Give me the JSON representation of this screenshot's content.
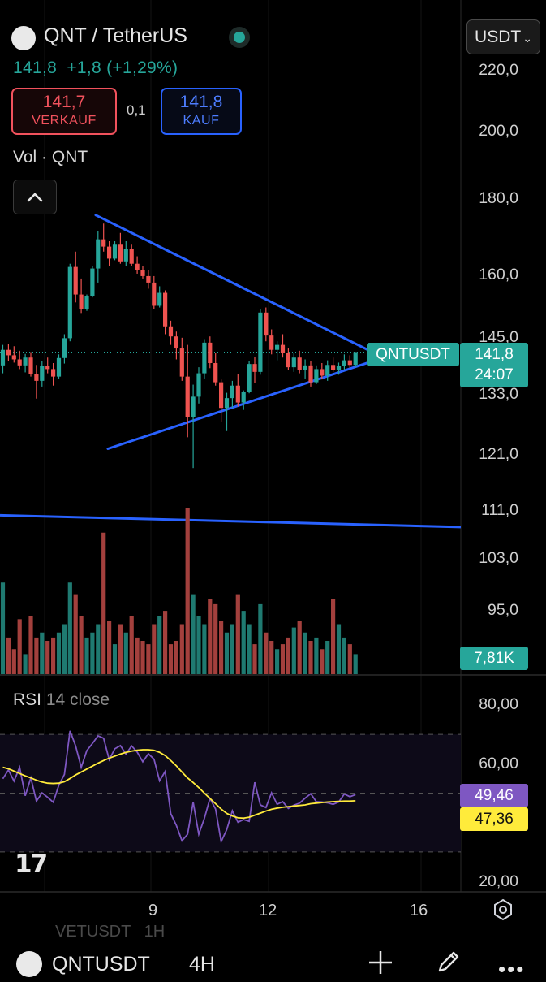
{
  "header": {
    "pair_title": "QNT / TetherUS",
    "last_line": "141,8  +1,8 (+1,29%)",
    "sell_price": "141,7",
    "sell_label": "VERKAUF",
    "spread": "0,1",
    "buy_price": "141,8",
    "buy_label": "KAUF",
    "currency": "USDT",
    "collapse_icon": "chevron-up-icon",
    "logo_icon": "quant-logo-icon"
  },
  "volume_label": {
    "main": "Vol · QNT"
  },
  "price_axis": [
    "220,0",
    "200,0",
    "180,0",
    "160,0",
    "145,0",
    "133,0",
    "121,0",
    "111,0",
    "103,0",
    "95,0"
  ],
  "tags": {
    "symbol": "QNTUSDT",
    "price": "141,8",
    "countdown": "24:07",
    "volume": "7,81K",
    "rsi_value": "49,46",
    "rsi_ma": "47,36"
  },
  "rsi_panel": {
    "label": "RSI",
    "params": "14 close",
    "axis": [
      "80,00",
      "60,00",
      "20,00"
    ]
  },
  "time_axis": [
    "9",
    "12",
    "16"
  ],
  "footer": {
    "ghost_text": "VETUSDT   1H",
    "symbol": "QNTUSDT",
    "timeframe": "4H",
    "icons": [
      "plus-icon",
      "pen-icon",
      "more-icon",
      "settings-icon"
    ]
  },
  "colors": {
    "up": "#26a69a",
    "down": "#ef5350",
    "trendline": "#2962ff",
    "rsi": "#7e57c2",
    "rsi_ma": "#ffeb3b"
  },
  "chart_data": {
    "type": "candlestick",
    "title": "QNT / TetherUS",
    "timeframe": "4H",
    "x_ticks": [
      "9",
      "12",
      "16"
    ],
    "y_axis_ticks": [
      220.0,
      200.0,
      180.0,
      160.0,
      145.0,
      133.0,
      121.0,
      111.0,
      103.0,
      95.0
    ],
    "y_scale": "log",
    "last_price": 141.8,
    "candles": [
      [
        138.9,
        143.4,
        137.2,
        142.3
      ],
      [
        142.3,
        143.6,
        139.8,
        141.1
      ],
      [
        141.1,
        143.1,
        139.5,
        140.2
      ],
      [
        140.2,
        142.1,
        138.1,
        138.9
      ],
      [
        138.9,
        141.4,
        137.4,
        140.6
      ],
      [
        140.6,
        141.8,
        136.5,
        137.1
      ],
      [
        137.1,
        139.0,
        131.9,
        135.6
      ],
      [
        135.6,
        139.8,
        134.4,
        138.7
      ],
      [
        138.7,
        140.6,
        137.2,
        138.1
      ],
      [
        138.1,
        139.4,
        134.6,
        136.5
      ],
      [
        136.5,
        141.3,
        136.1,
        140.5
      ],
      [
        140.5,
        145.8,
        139.3,
        144.9
      ],
      [
        144.9,
        162.7,
        144.2,
        161.9
      ],
      [
        161.9,
        165.8,
        153.2,
        155.1
      ],
      [
        155.1,
        159.0,
        150.7,
        151.6
      ],
      [
        151.6,
        155.1,
        151.2,
        154.7
      ],
      [
        154.7,
        162.1,
        154.4,
        161.5
      ],
      [
        161.5,
        171.2,
        158.0,
        169.0
      ],
      [
        169.0,
        173.2,
        165.8,
        167.1
      ],
      [
        167.1,
        168.5,
        162.1,
        164.0
      ],
      [
        164.0,
        168.5,
        163.6,
        167.6
      ],
      [
        167.6,
        170.7,
        162.7,
        163.3
      ],
      [
        163.3,
        168.5,
        162.1,
        166.5
      ],
      [
        166.5,
        167.6,
        162.1,
        162.7
      ],
      [
        162.7,
        164.6,
        160.2,
        161.1
      ],
      [
        161.1,
        162.1,
        159.0,
        159.6
      ],
      [
        159.6,
        161.1,
        156.5,
        158.0
      ],
      [
        158.0,
        159.6,
        151.6,
        152.4
      ],
      [
        152.4,
        157.1,
        152.0,
        155.5
      ],
      [
        155.5,
        156.1,
        145.8,
        147.6
      ],
      [
        147.6,
        148.9,
        143.4,
        145.3
      ],
      [
        145.3,
        146.4,
        140.2,
        142.6
      ],
      [
        142.6,
        145.0,
        135.6,
        136.5
      ],
      [
        136.5,
        143.4,
        124.2,
        128.2
      ],
      [
        128.2,
        134.8,
        118.4,
        132.3
      ],
      [
        132.3,
        138.5,
        130.9,
        137.2
      ],
      [
        137.2,
        144.7,
        136.1,
        143.9
      ],
      [
        143.9,
        145.3,
        138.3,
        139.4
      ],
      [
        139.4,
        141.6,
        134.6,
        135.3
      ],
      [
        135.3,
        135.9,
        127.2,
        130.0
      ],
      [
        130.0,
        133.1,
        125.4,
        132.0
      ],
      [
        132.0,
        135.6,
        130.0,
        134.6
      ],
      [
        134.6,
        137.1,
        130.3,
        131.1
      ],
      [
        131.1,
        133.6,
        129.6,
        133.3
      ],
      [
        133.3,
        139.8,
        133.0,
        139.2
      ],
      [
        139.2,
        140.8,
        135.2,
        137.5
      ],
      [
        137.5,
        151.6,
        136.9,
        150.8
      ],
      [
        150.8,
        152.0,
        144.2,
        145.5
      ],
      [
        145.5,
        146.9,
        141.3,
        142.3
      ],
      [
        142.3,
        144.2,
        140.0,
        143.4
      ],
      [
        143.4,
        145.8,
        140.6,
        141.6
      ],
      [
        141.6,
        142.6,
        137.9,
        138.5
      ],
      [
        138.5,
        141.6,
        137.5,
        140.6
      ],
      [
        140.6,
        142.1,
        137.2,
        137.9
      ],
      [
        137.9,
        140.2,
        136.1,
        138.9
      ],
      [
        138.9,
        139.8,
        134.4,
        135.3
      ],
      [
        135.3,
        138.9,
        134.9,
        138.1
      ],
      [
        138.1,
        139.4,
        135.9,
        136.7
      ],
      [
        136.7,
        140.0,
        135.6,
        139.0
      ],
      [
        139.0,
        140.6,
        137.5,
        137.9
      ],
      [
        137.9,
        139.5,
        136.9,
        138.7
      ],
      [
        138.7,
        141.3,
        137.9,
        140.0
      ],
      [
        140.0,
        141.1,
        138.3,
        139.0
      ],
      [
        139.0,
        141.6,
        138.5,
        141.8
      ]
    ],
    "volume_levels": [
      0.55,
      0.22,
      0.15,
      0.33,
      0.12,
      0.35,
      0.22,
      0.25,
      0.2,
      0.22,
      0.25,
      0.3,
      0.55,
      0.48,
      0.35,
      0.22,
      0.25,
      0.3,
      0.85,
      0.32,
      0.18,
      0.3,
      0.25,
      0.35,
      0.22,
      0.2,
      0.18,
      0.3,
      0.35,
      0.38,
      0.18,
      0.2,
      0.3,
      1.0,
      0.48,
      0.35,
      0.3,
      0.45,
      0.42,
      0.32,
      0.25,
      0.3,
      0.48,
      0.38,
      0.3,
      0.18,
      0.42,
      0.25,
      0.2,
      0.15,
      0.18,
      0.22,
      0.28,
      0.32,
      0.25,
      0.2,
      0.22,
      0.15,
      0.2,
      0.45,
      0.3,
      0.22,
      0.18,
      0.12
    ],
    "rsi": [
      54.9,
      57.9,
      54.1,
      58.8,
      49.1,
      55.2,
      47.3,
      50.1,
      48.6,
      46.9,
      52.7,
      56.4,
      71.2,
      66.1,
      58.8,
      64.5,
      66.9,
      69.5,
      68.7,
      61.4,
      65.1,
      66.2,
      63.3,
      66.1,
      64.0,
      60.7,
      63.4,
      61.6,
      54.2,
      57.4,
      43.0,
      39.0,
      33.8,
      36.0,
      46.9,
      36.0,
      41.4,
      48.2,
      44.6,
      33.5,
      37.6,
      44.0,
      40.1,
      41.0,
      40.4,
      53.7,
      46.0,
      45.1,
      50.1,
      46.2,
      47.1,
      44.8,
      45.9,
      46.6,
      48.3,
      49.8,
      47.1,
      47.0,
      46.7,
      46.2,
      47.0,
      49.7,
      48.8,
      49.5
    ],
    "rsi_ma": [
      58.8,
      58.3,
      57.5,
      56.7,
      55.9,
      55.2,
      54.4,
      53.8,
      53.4,
      53.3,
      53.4,
      53.9,
      55.0,
      56.2,
      57.2,
      58.2,
      59.2,
      60.2,
      61.1,
      61.9,
      62.6,
      63.3,
      63.9,
      64.3,
      64.6,
      64.8,
      64.8,
      64.6,
      63.9,
      62.8,
      61.1,
      59.3,
      57.2,
      55.2,
      53.6,
      51.9,
      50.0,
      48.2,
      46.4,
      44.6,
      43.1,
      42.2,
      41.6,
      41.5,
      41.8,
      42.5,
      43.2,
      43.9,
      44.5,
      44.9,
      45.2,
      45.4,
      45.6,
      45.8,
      46.0,
      46.4,
      46.6,
      46.8,
      47.0,
      47.1,
      47.2,
      47.3,
      47.3,
      47.4
    ],
    "rsi_levels": {
      "upper": 70,
      "middle": 50,
      "lower": 30
    },
    "trendlines": [
      {
        "from": [
          "start",
          175.5
        ],
        "to": [
          "apex",
          140.6
        ],
        "color": "#2962ff"
      },
      {
        "from": [
          "start",
          122.0
        ],
        "to": [
          "apex",
          140.6
        ],
        "color": "#2962ff"
      },
      {
        "from": [
          "left-edge",
          110.0
        ],
        "to": [
          "right-edge",
          108.0
        ],
        "color": "#2962ff"
      }
    ]
  }
}
